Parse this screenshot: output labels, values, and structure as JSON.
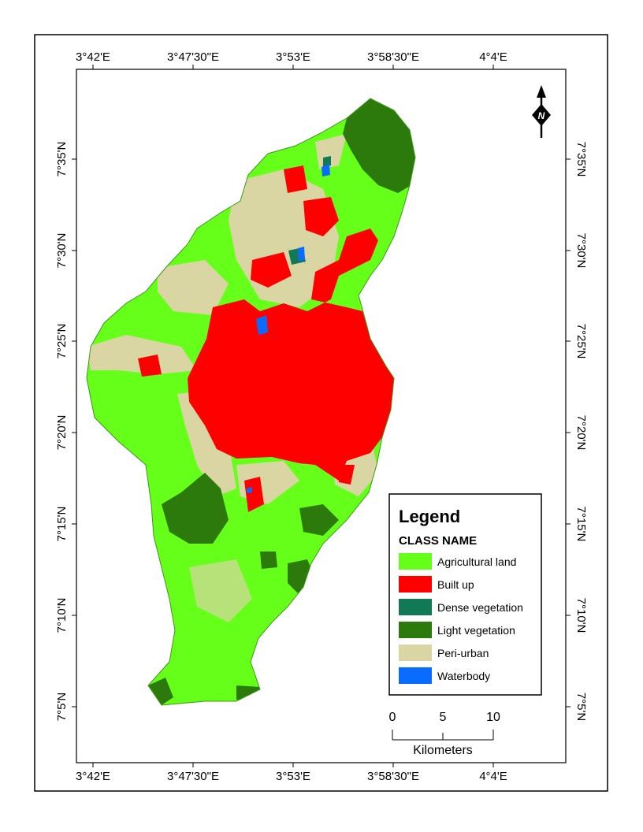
{
  "map": {
    "top_lon_labels": [
      "3°42'E",
      "3°47'30\"E",
      "3°53'E",
      "3°58'30\"E",
      "4°4'E"
    ],
    "bottom_lon_labels": [
      "3°42'E",
      "3°47'30\"E",
      "3°53'E",
      "3°58'30\"E",
      "4°4'E"
    ],
    "left_lat_labels": [
      "7°35'N",
      "7°30'N",
      "7°25'N",
      "7°20'N",
      "7°15'N",
      "7°10'N",
      "7°5'N"
    ],
    "right_lat_labels": [
      "7°35'N",
      "7°30'N",
      "7°25'N",
      "7°20'N",
      "7°15'N",
      "7°10'N",
      "7°5'N"
    ],
    "north_arrow": {
      "letter": "N",
      "icon": "north-arrow-icon"
    }
  },
  "legend": {
    "title": "Legend",
    "subtitle": "CLASS NAME",
    "items": [
      {
        "label": "Agricultural land",
        "color": "#66ff1a"
      },
      {
        "label": "Built up",
        "color": "#ff0000"
      },
      {
        "label": "Dense vegetation",
        "color": "#117a55"
      },
      {
        "label": "Light vegetation",
        "color": "#2b7a0b"
      },
      {
        "label": "Peri-urban",
        "color": "#d9d6a3"
      },
      {
        "label": "Waterbody",
        "color": "#0a6cff"
      }
    ]
  },
  "scale_bar": {
    "ticks": [
      "0",
      "5",
      "10"
    ],
    "unit": "Kilometers"
  }
}
